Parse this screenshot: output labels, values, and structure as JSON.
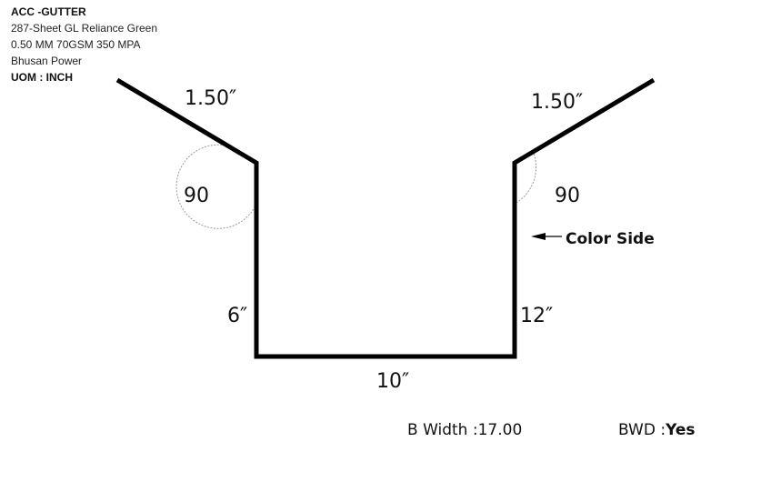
{
  "info": {
    "title": "ACC -GUTTER",
    "line1": "287-Sheet GL Reliance Green",
    "line2": "0.50 MM 70GSM 350 MPA",
    "line3": "Bhusan Power",
    "uom": "UOM : INCH"
  },
  "diagram": {
    "left_flange": "1.50″",
    "right_flange": "1.50″",
    "left_angle": "90",
    "right_angle": "90",
    "left_wall": "6″",
    "right_wall": "12″",
    "bottom": "10″",
    "color_side": "Color Side"
  },
  "footer": {
    "b_width_label": "B Width :",
    "b_width_value": "17.00",
    "bwd_label": "BWD :",
    "bwd_value": "Yes"
  },
  "colors": {
    "profile_line": "#000000",
    "angle_arc": "#9a9a9a",
    "text": "#111111"
  }
}
